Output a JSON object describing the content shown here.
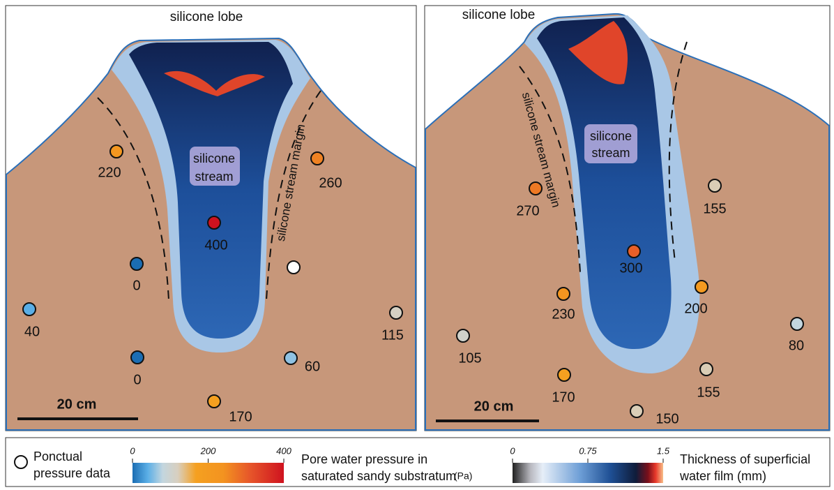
{
  "panels": [
    {
      "title": "silicone lobe",
      "stream_label": [
        "silicone",
        "stream"
      ],
      "margin_label": "silicone stream margin",
      "scale_label": "20 cm",
      "points": [
        220,
        260,
        400,
        0,
        40,
        0,
        60,
        115,
        170
      ]
    },
    {
      "title": "silicone lobe",
      "stream_label": [
        "silicone",
        "stream"
      ],
      "margin_label": "silicone stream margin",
      "scale_label": "20 cm",
      "points": [
        270,
        155,
        300,
        230,
        200,
        105,
        80,
        170,
        155,
        150
      ]
    }
  ],
  "legend": {
    "point_label": [
      "Ponctual",
      "pressure data"
    ],
    "pressure": {
      "lim": [
        0,
        400
      ],
      "ticks": [
        0,
        200,
        400
      ],
      "label": [
        "Pore water pressure in",
        "saturated sandy substratum"
      ],
      "unit": "(Pa)"
    },
    "film": {
      "lim": [
        0,
        1.5
      ],
      "ticks": [
        0,
        0.75,
        1.5
      ],
      "label": [
        "Thickness of superficial",
        "water film (mm)"
      ]
    }
  }
}
